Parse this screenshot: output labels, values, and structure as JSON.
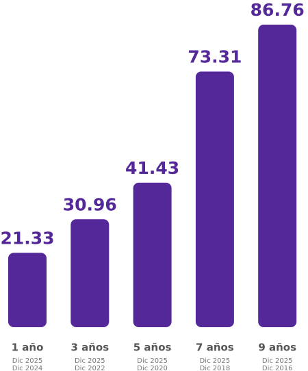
{
  "chart_data": {
    "type": "bar",
    "categories": [
      "1 año",
      "3 años",
      "5 años",
      "7 años",
      "9 años"
    ],
    "periods": [
      [
        "Dic 2025",
        "Dic 2024"
      ],
      [
        "Dic 2025",
        "Dic 2022"
      ],
      [
        "Dic 2025",
        "Dic 2020"
      ],
      [
        "Dic 2025",
        "Dic 2018"
      ],
      [
        "Dic 2025",
        "Dic 2016"
      ]
    ],
    "values": [
      21.33,
      30.96,
      41.43,
      73.31,
      86.76
    ],
    "color": "#55289a"
  }
}
